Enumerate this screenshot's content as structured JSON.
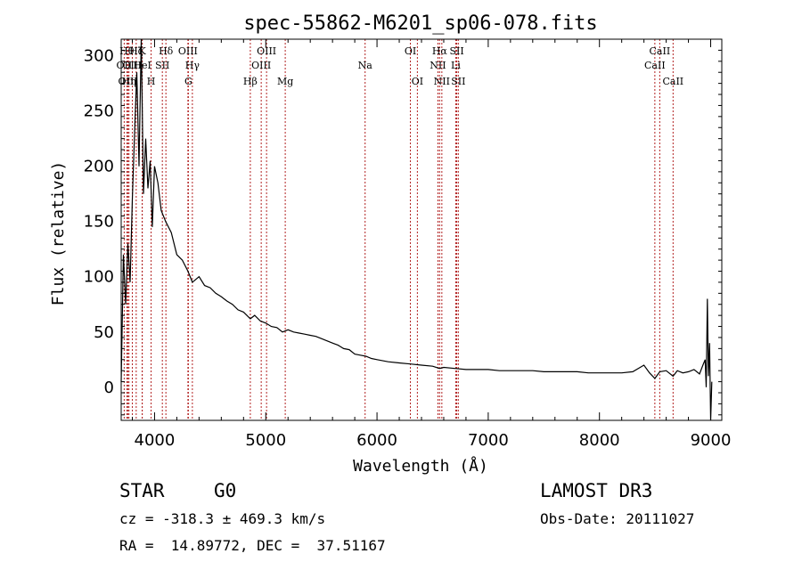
{
  "chart_data": {
    "type": "line",
    "title": "spec-55862-M6201_sp06-078.fits",
    "xlabel": "Wavelength (Å)",
    "ylabel": "Flux (relative)",
    "xlim": [
      3700,
      9100
    ],
    "ylim": [
      -30,
      315
    ],
    "x_ticks": [
      4000,
      5000,
      6000,
      7000,
      8000,
      9000
    ],
    "y_ticks": [
      0,
      50,
      100,
      150,
      200,
      250,
      300
    ],
    "line_color": "#000000",
    "marker_color": "#b22222",
    "spectrum": {
      "name": "flux",
      "x": [
        3700,
        3720,
        3740,
        3760,
        3780,
        3800,
        3820,
        3840,
        3860,
        3880,
        3900,
        3920,
        3940,
        3960,
        3980,
        4000,
        4030,
        4060,
        4100,
        4150,
        4200,
        4250,
        4300,
        4340,
        4400,
        4450,
        4500,
        4550,
        4600,
        4650,
        4700,
        4750,
        4800,
        4861,
        4900,
        4950,
        5000,
        5050,
        5100,
        5150,
        5200,
        5250,
        5300,
        5350,
        5400,
        5450,
        5500,
        5550,
        5600,
        5650,
        5700,
        5750,
        5800,
        5850,
        5900,
        5950,
        6000,
        6100,
        6200,
        6300,
        6400,
        6500,
        6563,
        6600,
        6700,
        6800,
        6900,
        7000,
        7100,
        7200,
        7300,
        7400,
        7500,
        7600,
        7700,
        7800,
        7900,
        8000,
        8100,
        8200,
        8300,
        8400,
        8450,
        8498,
        8542,
        8600,
        8662,
        8700,
        8750,
        8800,
        8850,
        8900,
        8930,
        8950,
        8960,
        8970,
        8980,
        8990,
        9000,
        9010
      ],
      "values": [
        5,
        120,
        75,
        130,
        95,
        170,
        230,
        285,
        200,
        315,
        175,
        225,
        180,
        205,
        145,
        200,
        185,
        160,
        150,
        140,
        120,
        115,
        105,
        95,
        100,
        92,
        90,
        85,
        82,
        78,
        75,
        70,
        68,
        62,
        65,
        60,
        58,
        55,
        54,
        50,
        52,
        50,
        49,
        48,
        47,
        46,
        44,
        42,
        40,
        38,
        35,
        34,
        30,
        29,
        28,
        26,
        25,
        23,
        22,
        21,
        20,
        19,
        17,
        18,
        17,
        16,
        16,
        16,
        15,
        15,
        15,
        15,
        14,
        14,
        14,
        14,
        13,
        13,
        13,
        13,
        14,
        20,
        13,
        8,
        14,
        15,
        10,
        15,
        13,
        14,
        16,
        12,
        20,
        25,
        0,
        80,
        10,
        40,
        -30,
        5
      ]
    },
    "lines": [
      {
        "label": "OII",
        "wl": 3727,
        "row": 2
      },
      {
        "label": "Hθ",
        "wl": 3750,
        "row": 1
      },
      {
        "label": "OIII",
        "wl": 3760,
        "row": 3
      },
      {
        "label": "Hη",
        "wl": 3770,
        "row": 3
      },
      {
        "label": "OIII",
        "wl": 3800,
        "row": 2
      },
      {
        "label": "Hζ",
        "wl": 3835,
        "row": 1
      },
      {
        "label": "K",
        "wl": 3889,
        "row": 1
      },
      {
        "label": "HeI",
        "wl": 3889,
        "row": 2
      },
      {
        "label": "H",
        "wl": 3969,
        "row": 3
      },
      {
        "label": "SII",
        "wl": 4070,
        "row": 2
      },
      {
        "label": "Hδ",
        "wl": 4102,
        "row": 1
      },
      {
        "label": "OIII",
        "wl": 4300,
        "row": 1
      },
      {
        "label": "Hγ",
        "wl": 4340,
        "row": 2
      },
      {
        "label": "G",
        "wl": 4304,
        "row": 3
      },
      {
        "label": "Hβ",
        "wl": 4861,
        "row": 3
      },
      {
        "label": "OIII",
        "wl": 4959,
        "row": 2
      },
      {
        "label": "OIII",
        "wl": 5007,
        "row": 1
      },
      {
        "label": "Mg",
        "wl": 5175,
        "row": 3
      },
      {
        "label": "Na",
        "wl": 5893,
        "row": 2
      },
      {
        "label": "OI",
        "wl": 6300,
        "row": 1
      },
      {
        "label": "OI",
        "wl": 6363,
        "row": 3
      },
      {
        "label": "NII",
        "wl": 6548,
        "row": 2
      },
      {
        "label": "Hα",
        "wl": 6563,
        "row": 1
      },
      {
        "label": "NII",
        "wl": 6583,
        "row": 3
      },
      {
        "label": "SII",
        "wl": 6717,
        "row": 1
      },
      {
        "label": "Li",
        "wl": 6708,
        "row": 2
      },
      {
        "label": "SII",
        "wl": 6731,
        "row": 3
      },
      {
        "label": "CaII",
        "wl": 8498,
        "row": 2
      },
      {
        "label": "CaII",
        "wl": 8542,
        "row": 1
      },
      {
        "label": "CaII",
        "wl": 8662,
        "row": 3
      }
    ]
  },
  "info": {
    "object_class": "STAR",
    "subclass": "G0",
    "survey": "LAMOST DR3",
    "cz": "cz = -318.3 ± 469.3 km/s",
    "obs_date": "Obs-Date: 20111027",
    "coords": "RA =  14.89772, DEC =  37.51167"
  }
}
